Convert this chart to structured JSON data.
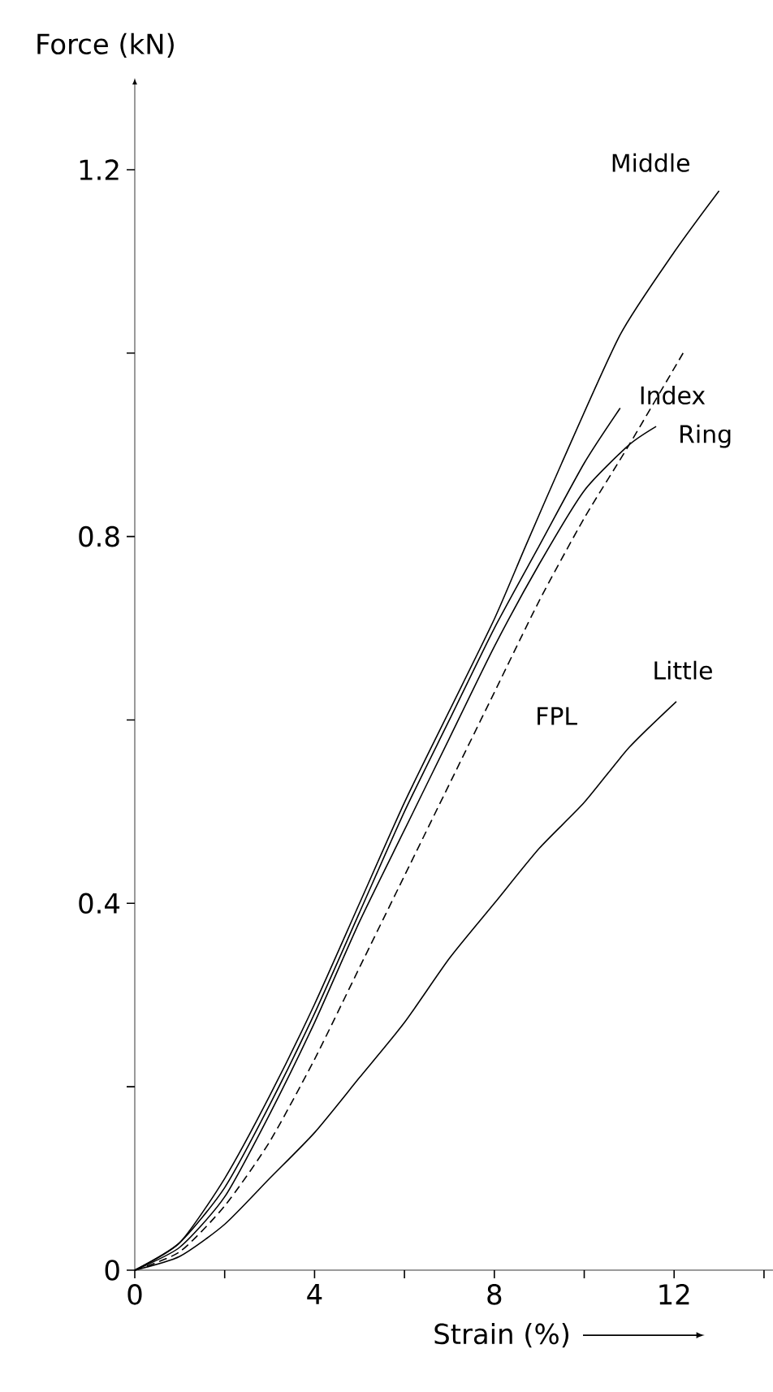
{
  "chart_data": {
    "type": "line",
    "xlabel": "Strain (%)",
    "ylabel": "Force (kN)",
    "xlim": [
      0,
      14.2
    ],
    "ylim": [
      0,
      1.3
    ],
    "xticks": [
      0,
      {
        "value": 2,
        "label": null
      },
      4,
      {
        "value": 6,
        "label": null
      },
      8,
      {
        "value": 10,
        "label": null
      },
      12,
      {
        "value": 14,
        "label": null
      }
    ],
    "yticks": [
      0,
      {
        "value": 0.2,
        "label": null
      },
      0.4,
      {
        "value": 0.6,
        "label": null
      },
      0.8,
      {
        "value": 1.0,
        "label": null
      },
      1.2
    ],
    "grid": false,
    "marker": "none",
    "series": [
      {
        "name": "Middle",
        "color": "#000000",
        "line_style": "solid",
        "x": [
          0,
          1,
          2,
          3,
          4,
          5,
          6,
          7,
          8,
          8.7,
          9.5,
          10.8,
          12,
          13
        ],
        "values": [
          0,
          0.03,
          0.1,
          0.19,
          0.29,
          0.4,
          0.51,
          0.61,
          0.71,
          0.79,
          0.88,
          1.02,
          1.11,
          1.177
        ]
      },
      {
        "name": "Index",
        "color": "#000000",
        "line_style": "solid",
        "x": [
          0,
          1,
          2,
          3,
          4,
          5,
          6,
          7,
          8,
          9,
          10,
          10.8
        ],
        "values": [
          0,
          0.03,
          0.09,
          0.18,
          0.28,
          0.39,
          0.5,
          0.6,
          0.7,
          0.79,
          0.88,
          0.94
        ]
      },
      {
        "name": "Ring",
        "color": "#000000",
        "line_style": "solid",
        "x": [
          0,
          1,
          2,
          3,
          4,
          5,
          6,
          7,
          8,
          9,
          10,
          11,
          11.6
        ],
        "values": [
          0,
          0.025,
          0.08,
          0.17,
          0.27,
          0.38,
          0.48,
          0.58,
          0.68,
          0.77,
          0.85,
          0.9,
          0.92
        ]
      },
      {
        "name": "FPL",
        "color": "#000000",
        "line_style": "dashed",
        "x": [
          0,
          1,
          2,
          3,
          4,
          5,
          6,
          7,
          8,
          9,
          10,
          11,
          12.2
        ],
        "values": [
          0,
          0.02,
          0.07,
          0.14,
          0.23,
          0.33,
          0.43,
          0.53,
          0.63,
          0.73,
          0.82,
          0.9,
          1.0
        ]
      },
      {
        "name": "Little",
        "color": "#000000",
        "line_style": "solid",
        "x": [
          0,
          1,
          2,
          3,
          4,
          5,
          6,
          7,
          8,
          9,
          10,
          11,
          12.05
        ],
        "values": [
          0,
          0.015,
          0.05,
          0.1,
          0.15,
          0.21,
          0.27,
          0.34,
          0.4,
          0.46,
          0.51,
          0.57,
          0.62
        ]
      }
    ]
  }
}
